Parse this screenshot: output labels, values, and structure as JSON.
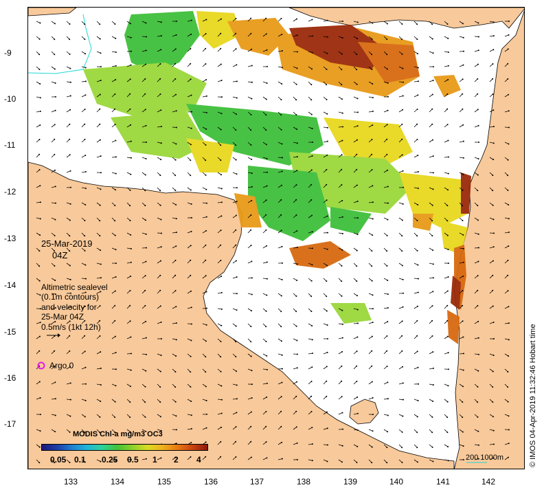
{
  "map": {
    "y_axis_labels": [
      "-9",
      "-10",
      "-11",
      "-12",
      "-13",
      "-14",
      "-15",
      "-16",
      "-17"
    ],
    "x_axis_labels": [
      "133",
      "134",
      "135",
      "136",
      "137",
      "138",
      "139",
      "140",
      "141",
      "142"
    ],
    "date_text": "25-Mar-2019",
    "time_text": "04Z",
    "legend_lines": [
      "Altimetric sealevel",
      "(0.1m contours)",
      "and velocity for",
      "25-Mar 04Z",
      "0.5m/s (1kt 12h)"
    ],
    "argo_label": "Argo 0",
    "credit": "© IMOS 04-Apr-2019 11:32:46 Hobart time",
    "scale_label": "200  1000m",
    "colorbar": {
      "title": "MODIS Chl-a mg/m3 OC3",
      "ticks": [
        "0.05",
        "0.1",
        "0.25",
        "0.5",
        "1",
        "2",
        "4"
      ]
    }
  },
  "colors": {
    "land": "#f8c99a",
    "green": "#3fbf3a",
    "lightgreen": "#9ad83a",
    "yellow": "#e8d81e",
    "orange": "#e89a18",
    "darkorange": "#d86a10",
    "brown": "#9a2a0a",
    "cyan": "#20d8d8",
    "argo": "#e020e0"
  }
}
